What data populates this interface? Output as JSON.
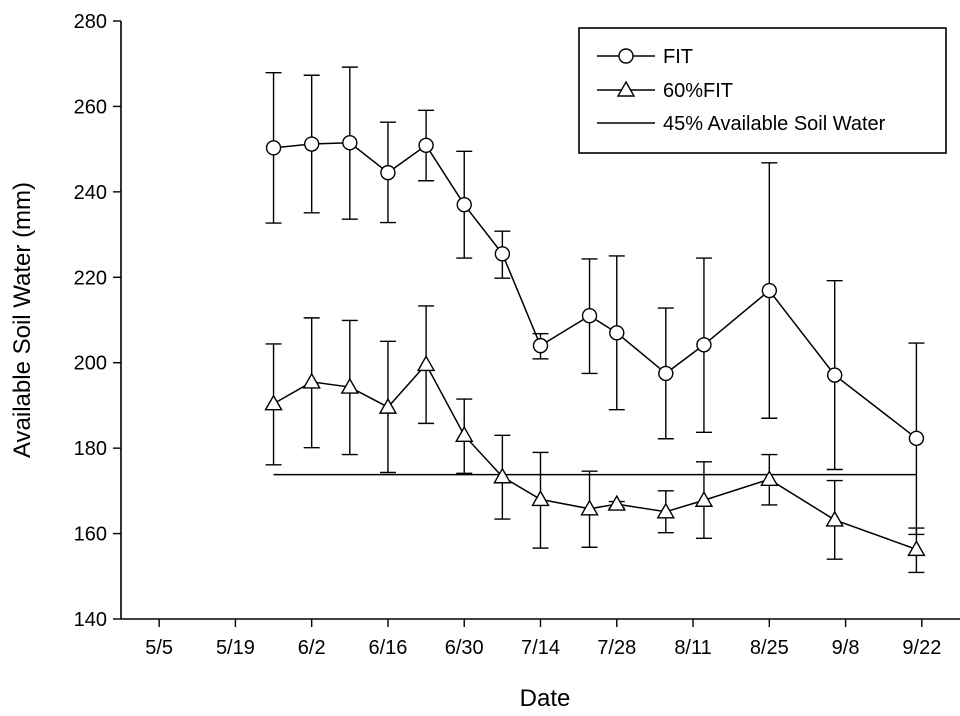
{
  "chart_data": {
    "type": "line",
    "title": "",
    "xlabel": "Date",
    "ylabel": "Available Soil Water (mm)",
    "x_ticks": [
      "5/5",
      "5/19",
      "6/2",
      "6/16",
      "6/30",
      "7/14",
      "7/28",
      "8/11",
      "8/25",
      "9/8",
      "9/22"
    ],
    "xlim": [
      "4/28",
      "9/29"
    ],
    "ylim": [
      140,
      280
    ],
    "y_ticks": [
      140,
      160,
      180,
      200,
      220,
      240,
      260,
      280
    ],
    "legend_position": "top-right",
    "series": [
      {
        "name": "FIT",
        "marker": "circle",
        "x": [
          "5/26",
          "6/2",
          "6/9",
          "6/16",
          "6/23",
          "6/30",
          "7/7",
          "7/14",
          "7/23",
          "7/28",
          "8/6",
          "8/13",
          "8/25",
          "9/6",
          "9/21"
        ],
        "y": [
          250.3,
          251.2,
          251.5,
          244.5,
          250.9,
          237.0,
          225.5,
          204.0,
          211.0,
          207.0,
          197.5,
          204.2,
          216.9,
          197.1,
          182.3
        ],
        "err_low": [
          232.7,
          235.1,
          233.6,
          232.8,
          242.6,
          224.5,
          219.8,
          200.9,
          197.5,
          189.0,
          182.2,
          183.7,
          187.0,
          175.0,
          159.8
        ],
        "err_high": [
          267.9,
          267.3,
          269.2,
          256.3,
          259.1,
          249.5,
          230.8,
          206.8,
          224.3,
          225.0,
          212.8,
          224.5,
          246.8,
          219.2,
          204.6
        ]
      },
      {
        "name": "60%FIT",
        "marker": "triangle",
        "x": [
          "5/26",
          "6/2",
          "6/9",
          "6/16",
          "6/23",
          "6/30",
          "7/7",
          "7/14",
          "7/23",
          "7/28",
          "8/6",
          "8/13",
          "8/25",
          "9/6",
          "9/21"
        ],
        "y": [
          190.4,
          195.5,
          194.3,
          189.6,
          199.6,
          183.0,
          173.3,
          168.0,
          165.8,
          166.9,
          165.1,
          167.8,
          172.7,
          163.2,
          156.3
        ],
        "err_low": [
          176.1,
          180.1,
          178.5,
          174.3,
          185.8,
          174.1,
          163.4,
          156.6,
          156.8,
          166.0,
          160.2,
          158.9,
          166.7,
          154.0,
          150.9
        ],
        "err_high": [
          204.4,
          210.5,
          209.9,
          205.0,
          213.3,
          191.5,
          183.0,
          179.0,
          174.6,
          167.5,
          170.0,
          176.8,
          178.5,
          172.4,
          161.3
        ]
      },
      {
        "name": "45% Available Soil Water",
        "marker": "none",
        "x": [
          "5/26",
          "9/21"
        ],
        "y": [
          173.8,
          173.8
        ]
      }
    ]
  }
}
